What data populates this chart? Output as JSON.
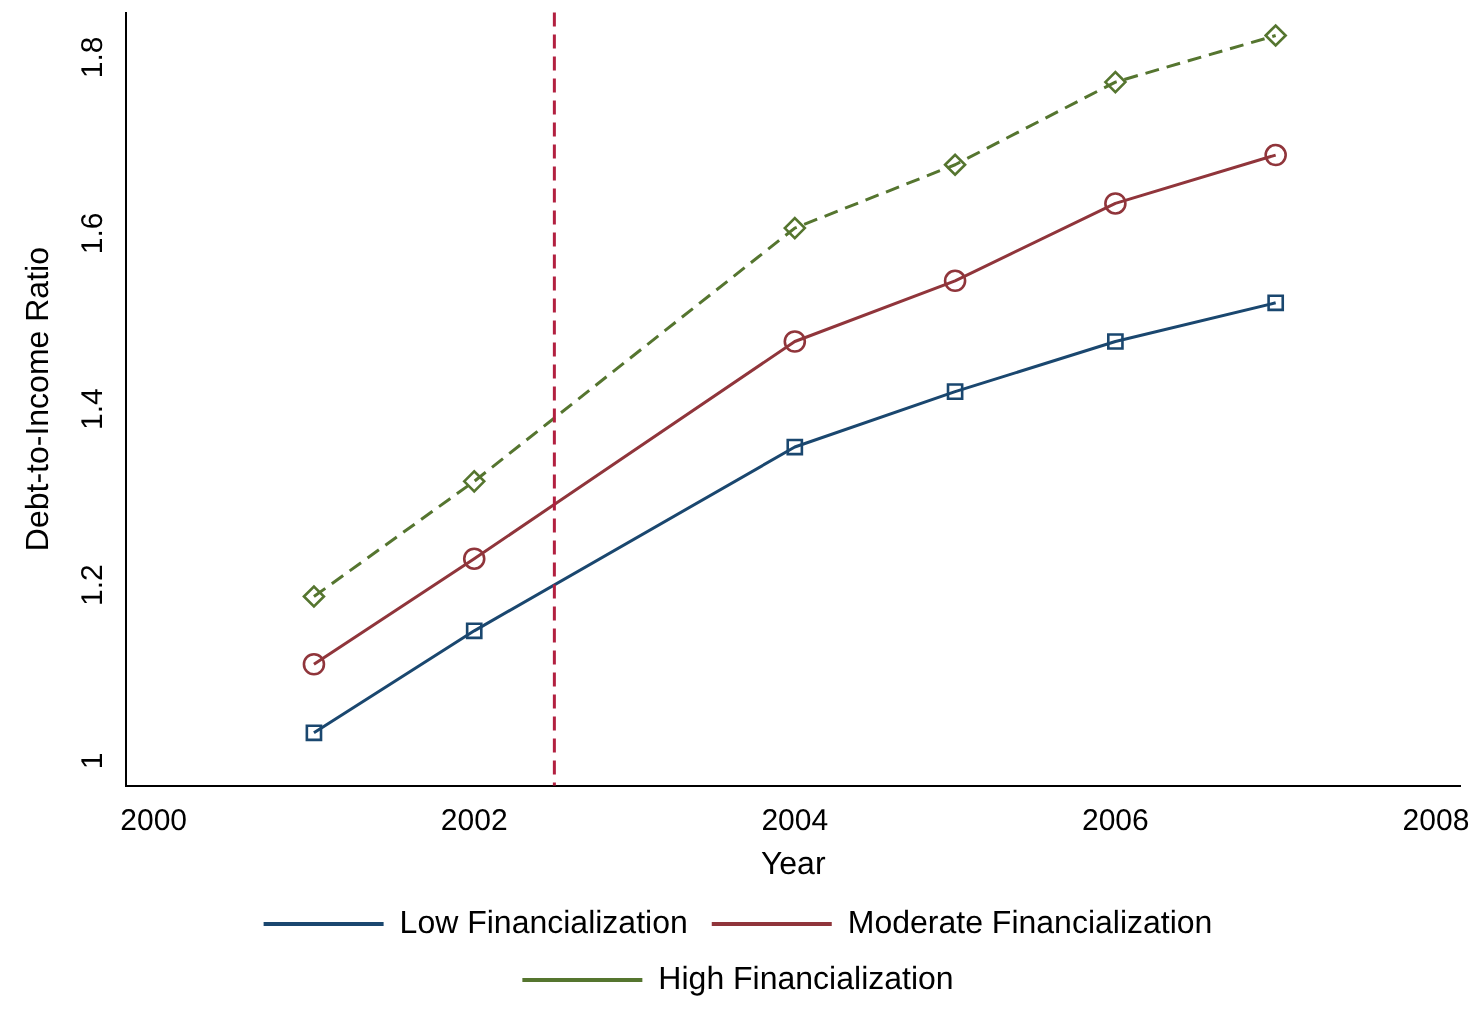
{
  "chart_data": {
    "type": "line",
    "xlabel": "Year",
    "ylabel": "Debt-to-Income Ratio",
    "x": [
      2001,
      2002,
      2004,
      2005,
      2006,
      2007
    ],
    "series": [
      {
        "name": "Low Financialization",
        "color": "#1a476f",
        "marker": "square",
        "line_style": "solid",
        "values": [
          1.032,
          1.148,
          1.357,
          1.42,
          1.477,
          1.521
        ]
      },
      {
        "name": "Moderate Financialization",
        "color": "#90353b",
        "marker": "circle",
        "line_style": "solid",
        "values": [
          1.11,
          1.23,
          1.477,
          1.546,
          1.634,
          1.689
        ]
      },
      {
        "name": "High Financialization",
        "color": "#55752f",
        "marker": "diamond",
        "line_style": "dashed",
        "values": [
          1.187,
          1.318,
          1.606,
          1.678,
          1.772,
          1.825
        ]
      }
    ],
    "xlim": [
      1999.83,
      2008.15
    ],
    "xticks": [
      2000,
      2002,
      2004,
      2006,
      2008
    ],
    "ylim": [
      0.972,
      1.851
    ],
    "yticks": [
      1,
      1.2,
      1.4,
      1.6,
      1.8
    ],
    "ref_lines": [
      {
        "axis": "x",
        "value": 2002.5,
        "color": "#b22040",
        "line_style": "dashed"
      }
    ],
    "grid": false,
    "legend": "bottom"
  }
}
